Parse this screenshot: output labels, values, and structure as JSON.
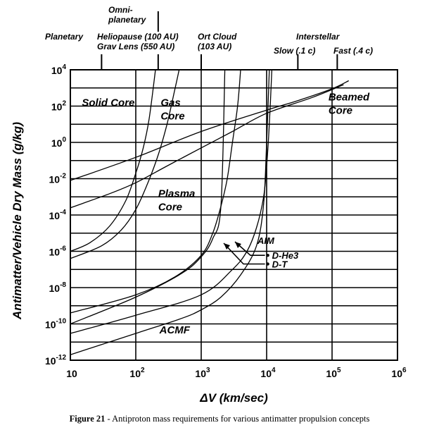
{
  "chart_data": {
    "type": "line",
    "xscale": "log",
    "yscale": "log",
    "xlim": [
      10,
      1000000
    ],
    "ylim": [
      1e-12,
      10000
    ],
    "grid": true,
    "xlabel_prefix": "Δ",
    "xlabel": "V (km/sec)",
    "ylabel": "Antimatter/Vehicle Dry Mass (g/kg)",
    "x_ticks": [
      {
        "base": "10",
        "exp": ""
      },
      {
        "base": "10",
        "exp": "2"
      },
      {
        "base": "10",
        "exp": "3"
      },
      {
        "base": "10",
        "exp": "4"
      },
      {
        "base": "10",
        "exp": "5"
      },
      {
        "base": "10",
        "exp": "6"
      }
    ],
    "y_ticks": [
      {
        "base": "10",
        "exp": "4"
      },
      {
        "base": "10",
        "exp": "2"
      },
      {
        "base": "10",
        "exp": "0"
      },
      {
        "base": "10",
        "exp": "-2"
      },
      {
        "base": "10",
        "exp": "-4"
      },
      {
        "base": "10",
        "exp": "-6"
      },
      {
        "base": "10",
        "exp": "-8"
      },
      {
        "base": "10",
        "exp": "-10"
      },
      {
        "base": "10",
        "exp": "-12"
      }
    ],
    "top_markers": [
      {
        "lines": [
          "Planetary"
        ],
        "x": 30
      },
      {
        "lines": [
          "Omni-",
          "planetary"
        ],
        "x": 220
      },
      {
        "lines": [
          "Heliopause (100 AU)",
          "Grav Lens (550 AU)"
        ],
        "x": 220
      },
      {
        "lines": [
          "Ort Cloud",
          "(103 AU)"
        ],
        "x": 1000
      },
      {
        "lines": [
          "Interstellar"
        ],
        "x": 50000
      },
      {
        "lines": [
          "Slow (.1 c)"
        ],
        "x": 30000
      },
      {
        "lines": [
          "Fast (.4 c)"
        ],
        "x": 120000
      }
    ],
    "regions": [
      {
        "lines": [
          "Solid Core"
        ],
        "x": 15,
        "y": 100
      },
      {
        "lines": [
          "Gas",
          "Core"
        ],
        "x": 240,
        "y": 100
      },
      {
        "lines": [
          "Plasma",
          "Core"
        ],
        "x": 220,
        "y": 0.001
      },
      {
        "lines": [
          "Beamed",
          "Core"
        ],
        "x": 88000,
        "y": 200
      },
      {
        "lines": [
          "ACMF"
        ],
        "x": 230,
        "y": 3e-11
      }
    ],
    "aim_label": "AIM",
    "series": [
      {
        "label": "",
        "x": [
          10,
          100,
          1000,
          10000,
          30000,
          100000,
          180000
        ],
        "y": [
          0.008,
          0.15,
          4,
          60,
          200,
          900,
          2500
        ]
      },
      {
        "label": "",
        "x": [
          10,
          40,
          100,
          300,
          1000,
          3000,
          10000,
          50000,
          150000
        ],
        "y": [
          0.00025,
          0.0015,
          0.006,
          0.05,
          0.5,
          4,
          40,
          300,
          1500
        ]
      },
      {
        "label": "",
        "x": [
          10,
          20,
          40,
          70,
          100,
          130,
          160,
          200
        ],
        "y": [
          1e-06,
          3e-06,
          2.5e-05,
          0.0006,
          0.02,
          0.5,
          20,
          10000
        ]
      },
      {
        "label": "",
        "x": [
          10,
          30,
          60,
          100,
          150,
          220,
          300,
          400,
          460
        ],
        "y": [
          4e-07,
          2e-06,
          1.5e-05,
          0.0002,
          0.005,
          0.2,
          10,
          1000,
          10000
        ]
      },
      {
        "label": "",
        "x": [
          10,
          100,
          400,
          1000,
          1500,
          2000,
          2500,
          3000,
          3600,
          4000
        ],
        "y": [
          4e-10,
          4e-09,
          4e-08,
          6e-07,
          1e-05,
          0.0003,
          0.01,
          1,
          100,
          10000
        ]
      },
      {
        "label": "",
        "x": [
          10,
          100,
          500,
          1000,
          1500,
          2000,
          2300
        ],
        "y": [
          1e-10,
          3e-09,
          6e-08,
          5e-07,
          5e-06,
          0.0003,
          10000
        ]
      },
      {
        "label": "",
        "x": [
          10,
          100,
          1000,
          3000,
          5000,
          7000,
          9000,
          10000,
          11000,
          12000
        ],
        "y": [
          3e-11,
          3e-10,
          4e-09,
          1e-07,
          1e-06,
          2e-05,
          0.001,
          0.05,
          10,
          10000
        ]
      },
      {
        "label": "ACMF",
        "x": [
          10,
          100,
          500,
          1000,
          2000,
          4000,
          7000,
          9000,
          10000,
          11000
        ],
        "y": [
          2e-12,
          3e-11,
          2e-10,
          6e-10,
          3e-09,
          5e-08,
          2e-06,
          0.0004,
          1,
          10000
        ]
      },
      {
        "label": "D-He3",
        "marker": "•",
        "x": 11500,
        "y": 6e-07
      },
      {
        "label": "D-T",
        "marker": "•",
        "x": 11500,
        "y": 2e-07
      }
    ]
  },
  "caption": {
    "bold": "Figure 21",
    "text": " - Antiproton mass requirements for various antimatter propulsion concepts"
  }
}
